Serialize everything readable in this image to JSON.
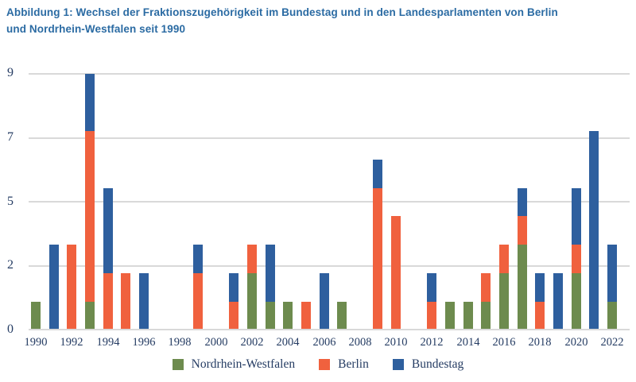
{
  "title": {
    "line1": "Abbildung 1: Wechsel der Fraktionszugehörigkeit im Bundestag und in den Landesparlamenten von Berlin",
    "line2": "und Nordrhein-Westfalen seit 1990"
  },
  "colors": {
    "nrw_green": "#6d8b4e",
    "berlin_orange": "#f0613e",
    "bundestag_blue": "#2e5f9e",
    "title_text": "#2b6ba3",
    "axis_text": "#253c63",
    "gridline": "#d9d9d9"
  },
  "legend": {
    "items": [
      {
        "label": "Nordrhein-Westfalen",
        "color": "#6d8b4e"
      },
      {
        "label": "Berlin",
        "color": "#f0613e"
      },
      {
        "label": "Bundestag",
        "color": "#2e5f9e"
      }
    ]
  },
  "chart_data": {
    "type": "bar",
    "stacked": true,
    "title": "Abbildung 1: Wechsel der Fraktionszugehörigkeit im Bundestag und in den Landesparlamenten von Berlin und Nordrhein-Westfalen seit 1990",
    "x": [
      1990,
      1991,
      1992,
      1993,
      1994,
      1995,
      1996,
      1997,
      1998,
      1999,
      2000,
      2001,
      2002,
      2003,
      2004,
      2005,
      2006,
      2007,
      2008,
      2009,
      2010,
      2011,
      2012,
      2013,
      2014,
      2015,
      2016,
      2017,
      2018,
      2019,
      2020,
      2021,
      2022
    ],
    "x_tick_labels": [
      "1990",
      "1992",
      "1994",
      "1996",
      "1998",
      "2000",
      "2002",
      "2004",
      "2006",
      "2008",
      "2010",
      "2012",
      "2014",
      "2016",
      "2018",
      "2020",
      "2022"
    ],
    "series": [
      {
        "name": "Nordrhein-Westfalen",
        "color": "#6d8b4e",
        "values": [
          1,
          0,
          0,
          1,
          0,
          0,
          0,
          0,
          0,
          0,
          0,
          0,
          2,
          1,
          1,
          0,
          0,
          1,
          0,
          0,
          0,
          0,
          0,
          1,
          1,
          1,
          2,
          3,
          0,
          0,
          2,
          0,
          1
        ]
      },
      {
        "name": "Berlin",
        "color": "#f0613e",
        "values": [
          0,
          0,
          3,
          6,
          2,
          2,
          0,
          0,
          0,
          2,
          0,
          1,
          1,
          0,
          0,
          1,
          0,
          0,
          0,
          5,
          4,
          0,
          1,
          0,
          0,
          1,
          1,
          1,
          1,
          0,
          1,
          0,
          0
        ]
      },
      {
        "name": "Bundestag",
        "color": "#2e5f9e",
        "values": [
          0,
          3,
          0,
          2,
          3,
          0,
          2,
          0,
          0,
          1,
          0,
          1,
          0,
          2,
          0,
          0,
          2,
          0,
          0,
          1,
          0,
          0,
          1,
          0,
          0,
          0,
          0,
          1,
          1,
          2,
          2,
          7,
          2
        ]
      }
    ],
    "y_ticks": [
      {
        "label": "0",
        "value": 0
      },
      {
        "label": "2",
        "value": 2.25
      },
      {
        "label": "5",
        "value": 4.5
      },
      {
        "label": "7",
        "value": 6.75
      },
      {
        "label": "9",
        "value": 9
      }
    ],
    "ylim": [
      0,
      9
    ],
    "xlabel": "",
    "ylabel": "",
    "grid": true,
    "legend_position": "bottom"
  }
}
